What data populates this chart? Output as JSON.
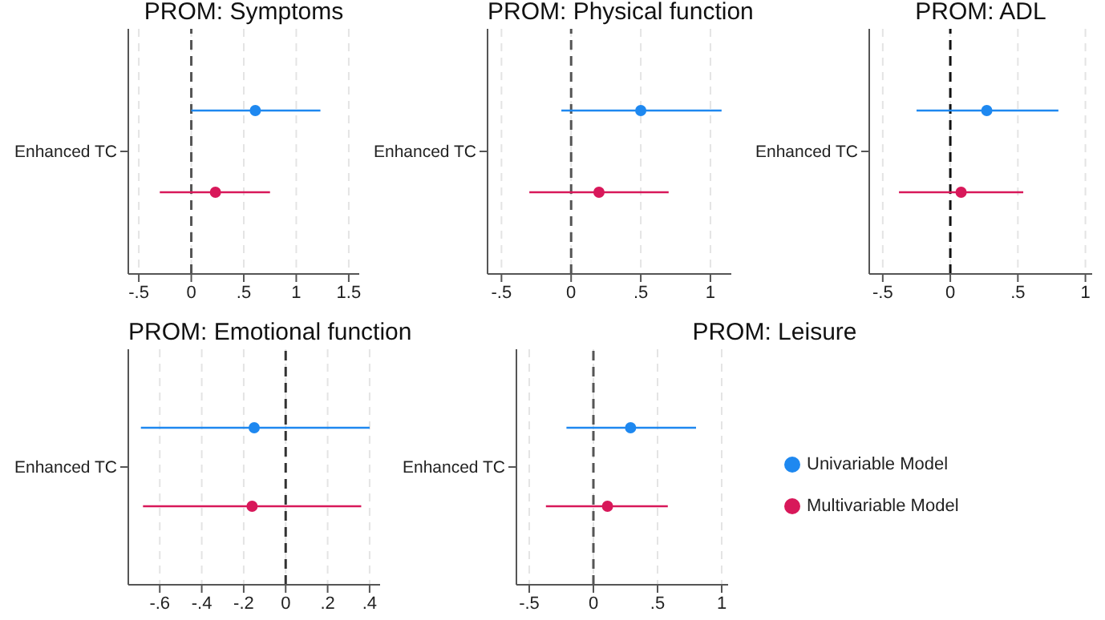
{
  "chart_data": [
    {
      "type": "scatter",
      "orientation": "horizontal",
      "title": "PROM: Symptoms",
      "categories": [
        "Enhanced TC"
      ],
      "xlim": [
        -0.6,
        1.6
      ],
      "xticks": [
        {
          "value": -0.5,
          "label": "-.5"
        },
        0,
        {
          "value": 0.5,
          "label": ".5"
        },
        1,
        1.5
      ],
      "grid": "x",
      "marker": "circle",
      "ref_lines": [
        {
          "axis": "x",
          "value": 0,
          "line_style": "dashed",
          "color": "#555555"
        }
      ],
      "series": [
        {
          "color": "#1e88f0",
          "values": [
            0.61
          ],
          "errors": [
            [
              0.0,
              1.23
            ]
          ]
        },
        {
          "color": "#d8185a",
          "values": [
            0.23
          ],
          "errors": [
            [
              -0.3,
              0.75
            ]
          ]
        }
      ]
    },
    {
      "type": "scatter",
      "orientation": "horizontal",
      "title": "PROM: Physical function",
      "categories": [
        "Enhanced TC"
      ],
      "xlim": [
        -0.6,
        1.15
      ],
      "xticks": [
        {
          "value": -0.5,
          "label": "-.5"
        },
        0,
        {
          "value": 0.5,
          "label": ".5"
        },
        1
      ],
      "grid": "x",
      "marker": "circle",
      "ref_lines": [
        {
          "axis": "x",
          "value": 0,
          "line_style": "dashed",
          "color": "#555555"
        }
      ],
      "series": [
        {
          "color": "#1e88f0",
          "values": [
            0.5
          ],
          "errors": [
            [
              -0.07,
              1.08
            ]
          ]
        },
        {
          "color": "#d8185a",
          "values": [
            0.2
          ],
          "errors": [
            [
              -0.3,
              0.7
            ]
          ]
        }
      ]
    },
    {
      "type": "scatter",
      "orientation": "horizontal",
      "title": "PROM: ADL",
      "categories": [
        "Enhanced TC"
      ],
      "xlim": [
        -0.6,
        1.05
      ],
      "xticks": [
        {
          "value": -0.5,
          "label": "-.5"
        },
        0,
        {
          "value": 0.5,
          "label": ".5"
        },
        1
      ],
      "grid": "x",
      "marker": "circle",
      "ref_lines": [
        {
          "axis": "x",
          "value": 0,
          "line_style": "dashed",
          "color": "#111111"
        }
      ],
      "series": [
        {
          "color": "#1e88f0",
          "values": [
            0.27
          ],
          "errors": [
            [
              -0.25,
              0.8
            ]
          ]
        },
        {
          "color": "#d8185a",
          "values": [
            0.08
          ],
          "errors": [
            [
              -0.38,
              0.54
            ]
          ]
        }
      ]
    },
    {
      "type": "scatter",
      "orientation": "horizontal",
      "title": "PROM: Emotional function",
      "categories": [
        "Enhanced TC"
      ],
      "xlim": [
        -0.75,
        0.45
      ],
      "xticks": [
        {
          "value": -0.6,
          "label": "-.6"
        },
        {
          "value": -0.4,
          "label": "-.4"
        },
        {
          "value": -0.2,
          "label": "-.2"
        },
        0,
        {
          "value": 0.2,
          "label": ".2"
        },
        {
          "value": 0.4,
          "label": ".4"
        }
      ],
      "grid": "x",
      "marker": "circle",
      "ref_lines": [
        {
          "axis": "x",
          "value": 0,
          "line_style": "dashed",
          "color": "#333333"
        }
      ],
      "series": [
        {
          "color": "#1e88f0",
          "values": [
            -0.15
          ],
          "errors": [
            [
              -0.69,
              0.4
            ]
          ]
        },
        {
          "color": "#d8185a",
          "values": [
            -0.16
          ],
          "errors": [
            [
              -0.68,
              0.36
            ]
          ]
        }
      ]
    },
    {
      "type": "scatter",
      "orientation": "horizontal",
      "title": "PROM: Leisure",
      "categories": [
        "Enhanced TC"
      ],
      "xlim": [
        -0.6,
        1.05
      ],
      "xticks": [
        {
          "value": -0.5,
          "label": "-.5"
        },
        0,
        {
          "value": 0.5,
          "label": ".5"
        },
        1
      ],
      "grid": "x",
      "marker": "circle",
      "legend": "right",
      "ref_lines": [
        {
          "axis": "x",
          "value": 0,
          "line_style": "dashed",
          "color": "#555555"
        }
      ],
      "series": [
        {
          "name": "Univariable Model",
          "color": "#1e88f0",
          "values": [
            0.29
          ],
          "errors": [
            [
              -0.21,
              0.8
            ]
          ]
        },
        {
          "name": "Multivariable Model",
          "color": "#d8185a",
          "values": [
            0.11
          ],
          "errors": [
            [
              -0.37,
              0.58
            ]
          ]
        }
      ]
    }
  ]
}
